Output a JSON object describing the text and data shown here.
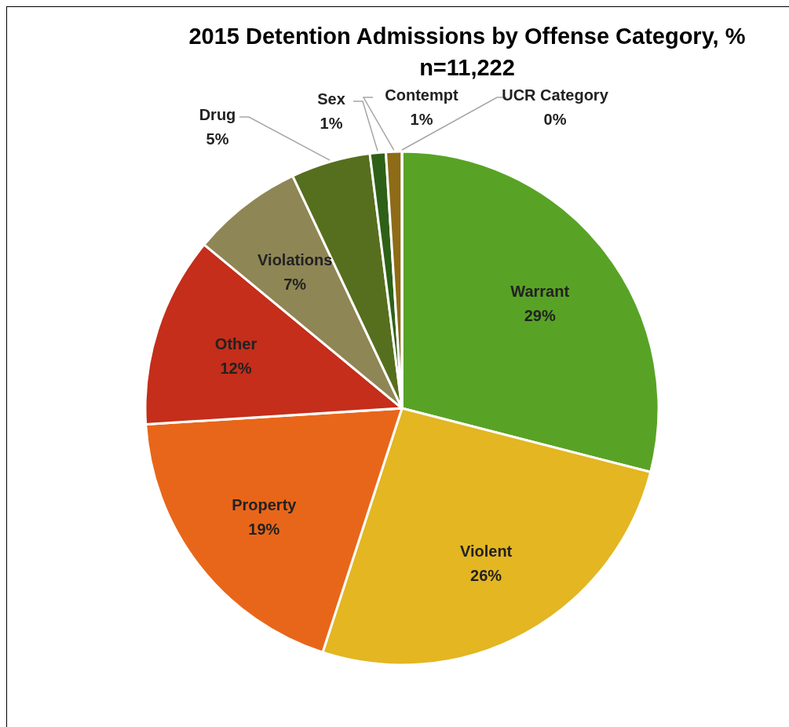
{
  "chart_data": {
    "type": "pie",
    "title": "2015 Detention Admissions by Offense Category, %",
    "subtitle": "n=11,222",
    "categories": [
      "Warrant",
      "Violent",
      "Property",
      "Other",
      "Violations",
      "Drug",
      "Sex",
      "Contempt",
      "UCR Category"
    ],
    "values": [
      29,
      26,
      19,
      12,
      7,
      5,
      1,
      1,
      0
    ],
    "value_labels": [
      "29%",
      "26%",
      "19%",
      "12%",
      "7%",
      "5%",
      "1%",
      "1%",
      "0%"
    ],
    "colors": [
      "#58a325",
      "#e3b622",
      "#e8661a",
      "#c42e1a",
      "#8f8655",
      "#566f1e",
      "#2e6117",
      "#8e6b16",
      "#b08a30"
    ]
  }
}
